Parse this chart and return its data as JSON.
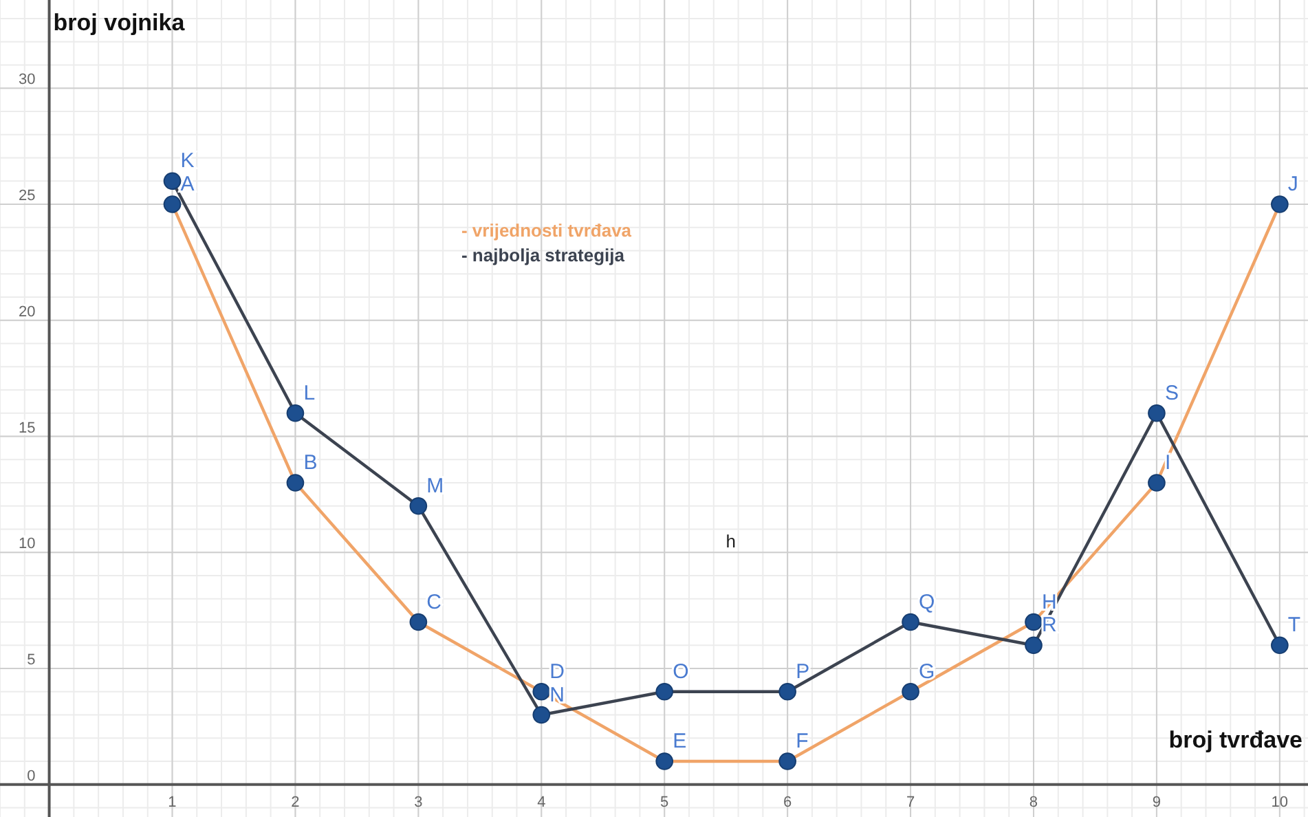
{
  "chart_data": {
    "type": "line",
    "xlabel": "broj tvrđave",
    "ylabel": "broj vojnika",
    "x": [
      1,
      2,
      3,
      4,
      5,
      6,
      7,
      8,
      9,
      10
    ],
    "series": [
      {
        "name": "- vrijednosti tvrđava",
        "color": "#f0a468",
        "values": [
          25,
          13,
          7,
          4,
          1,
          1,
          4,
          7,
          13,
          25
        ]
      },
      {
        "name": "- najbolja strategija",
        "color": "#3c4350",
        "values": [
          26,
          16,
          12,
          3,
          4,
          4,
          7,
          6,
          16,
          6
        ]
      }
    ],
    "xlim": [
      -0.4,
      10.23
    ],
    "ylim": [
      -1.4,
      33.8
    ],
    "xticks": [
      1,
      2,
      3,
      4,
      5,
      6,
      7,
      8,
      9,
      10
    ],
    "yticks": [
      0,
      5,
      10,
      15,
      20,
      25,
      30
    ],
    "grid": true,
    "marker": "circle",
    "line_style": "solid",
    "legend": "top",
    "annotations": [
      {
        "text": "A",
        "x": 1,
        "y": 25
      },
      {
        "text": "B",
        "x": 2,
        "y": 13
      },
      {
        "text": "C",
        "x": 3,
        "y": 7
      },
      {
        "text": "D",
        "x": 4,
        "y": 4
      },
      {
        "text": "E",
        "x": 5,
        "y": 1
      },
      {
        "text": "F",
        "x": 6,
        "y": 1
      },
      {
        "text": "G",
        "x": 7,
        "y": 4
      },
      {
        "text": "H",
        "x": 8,
        "y": 7
      },
      {
        "text": "I",
        "x": 9,
        "y": 13
      },
      {
        "text": "J",
        "x": 10,
        "y": 25
      },
      {
        "text": "K",
        "x": 1,
        "y": 26
      },
      {
        "text": "L",
        "x": 2,
        "y": 16
      },
      {
        "text": "M",
        "x": 3,
        "y": 12
      },
      {
        "text": "N",
        "x": 4,
        "y": 3
      },
      {
        "text": "O",
        "x": 5,
        "y": 4
      },
      {
        "text": "P",
        "x": 6,
        "y": 4
      },
      {
        "text": "Q",
        "x": 7,
        "y": 7
      },
      {
        "text": "R",
        "x": 8,
        "y": 6
      },
      {
        "text": "S",
        "x": 9,
        "y": 16
      },
      {
        "text": "T",
        "x": 10,
        "y": 6
      },
      "h"
    ]
  }
}
